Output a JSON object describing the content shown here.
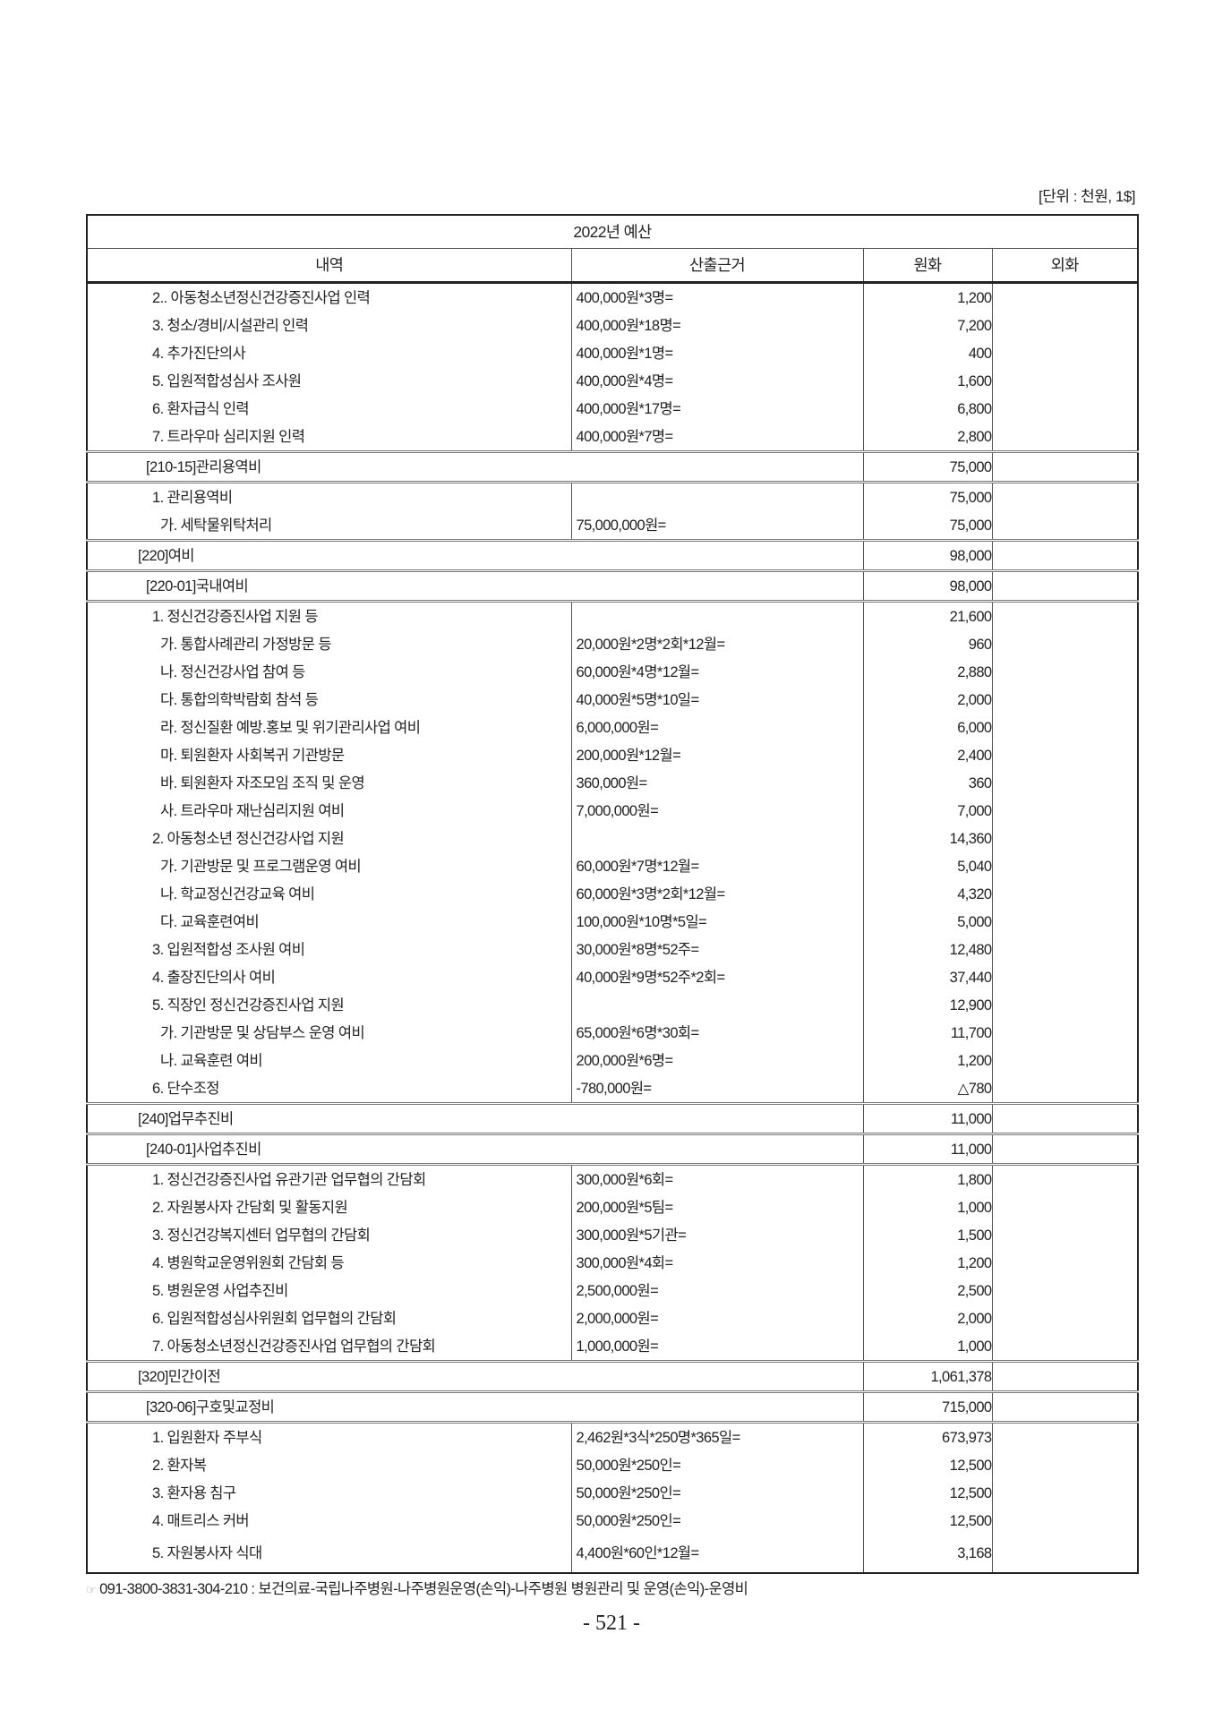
{
  "unit_note": "[단위 : 천원, 1$]",
  "table": {
    "title": "2022년 예산",
    "headers": [
      "내역",
      "산출근거",
      "원화",
      "외화"
    ],
    "rows": [
      {
        "type": "item",
        "level": 2,
        "label": "2.. 아동청소년정신건강증진사업 인력",
        "basis": "400,000원*3명=",
        "krw": "1,200"
      },
      {
        "type": "item",
        "level": 2,
        "label": "3. 청소/경비/시설관리 인력",
        "basis": "400,000원*18명=",
        "krw": "7,200"
      },
      {
        "type": "item",
        "level": 2,
        "label": "4. 추가진단의사",
        "basis": "400,000원*1명=",
        "krw": "400"
      },
      {
        "type": "item",
        "level": 2,
        "label": "5. 입원적합성심사 조사원",
        "basis": "400,000원*4명=",
        "krw": "1,600"
      },
      {
        "type": "item",
        "level": 2,
        "label": "6. 환자급식 인력",
        "basis": "400,000원*17명=",
        "krw": "6,800"
      },
      {
        "type": "item",
        "level": 2,
        "label": "7. 트라우마 심리지원 인력",
        "basis": "400,000원*7명=",
        "krw": "2,800"
      },
      {
        "type": "section",
        "level": 1,
        "label": "[210-15]관리용역비",
        "krw": "75,000"
      },
      {
        "type": "item",
        "level": 2,
        "label": "1. 관리용역비",
        "basis": "",
        "krw": "75,000"
      },
      {
        "type": "item",
        "level": 3,
        "label": "가. 세탁물위탁처리",
        "basis": "75,000,000원=",
        "krw": "75,000"
      },
      {
        "type": "section",
        "level": 0,
        "label": "[220]여비",
        "krw": "98,000"
      },
      {
        "type": "section",
        "level": 1,
        "label": "[220-01]국내여비",
        "krw": "98,000"
      },
      {
        "type": "item",
        "level": 2,
        "label": "1. 정신건강증진사업 지원 등",
        "basis": "",
        "krw": "21,600"
      },
      {
        "type": "item",
        "level": 3,
        "label": "가. 통합사례관리 가정방문 등",
        "basis": "20,000원*2명*2회*12월=",
        "krw": "960"
      },
      {
        "type": "item",
        "level": 3,
        "label": "나. 정신건강사업 참여 등",
        "basis": "60,000원*4명*12월=",
        "krw": "2,880"
      },
      {
        "type": "item",
        "level": 3,
        "label": "다. 통합의학박람회 참석 등",
        "basis": "40,000원*5명*10일=",
        "krw": "2,000"
      },
      {
        "type": "item",
        "level": 3,
        "label": "라. 정신질환 예방.홍보 및 위기관리사업 여비",
        "basis": "6,000,000원=",
        "krw": "6,000"
      },
      {
        "type": "item",
        "level": 3,
        "label": "마. 퇴원환자 사회복귀 기관방문",
        "basis": "200,000원*12월=",
        "krw": "2,400"
      },
      {
        "type": "item",
        "level": 3,
        "label": "바. 퇴원환자 자조모임 조직 및 운영",
        "basis": "360,000원=",
        "krw": "360"
      },
      {
        "type": "item",
        "level": 3,
        "label": "사. 트라우마 재난심리지원 여비",
        "basis": "7,000,000원=",
        "krw": "7,000"
      },
      {
        "type": "item",
        "level": 2,
        "label": "2. 아동청소년 정신건강사업 지원",
        "basis": "",
        "krw": "14,360"
      },
      {
        "type": "item",
        "level": 3,
        "label": "가. 기관방문 및 프로그램운영 여비",
        "basis": "60,000원*7명*12월=",
        "krw": "5,040"
      },
      {
        "type": "item",
        "level": 3,
        "label": "나. 학교정신건강교육 여비",
        "basis": "60,000원*3명*2회*12월=",
        "krw": "4,320"
      },
      {
        "type": "item",
        "level": 3,
        "label": "다. 교육훈련여비",
        "basis": "100,000원*10명*5일=",
        "krw": "5,000"
      },
      {
        "type": "item",
        "level": 2,
        "label": "3. 입원적합성 조사원 여비",
        "basis": "30,000원*8명*52주=",
        "krw": "12,480"
      },
      {
        "type": "item",
        "level": 2,
        "label": "4. 출장진단의사 여비",
        "basis": "40,000원*9명*52주*2회=",
        "krw": "37,440"
      },
      {
        "type": "item",
        "level": 2,
        "label": "5. 직장인 정신건강증진사업 지원",
        "basis": "",
        "krw": "12,900"
      },
      {
        "type": "item",
        "level": 3,
        "label": "가. 기관방문 및 상담부스 운영 여비",
        "basis": "65,000원*6명*30회=",
        "krw": "11,700"
      },
      {
        "type": "item",
        "level": 3,
        "label": "나. 교육훈련 여비",
        "basis": "200,000원*6명=",
        "krw": "1,200"
      },
      {
        "type": "item",
        "level": 2,
        "label": "6. 단수조정",
        "basis": "-780,000원=",
        "krw": "△780"
      },
      {
        "type": "section",
        "level": 0,
        "label": "[240]업무추진비",
        "krw": "11,000"
      },
      {
        "type": "section",
        "level": 1,
        "label": "[240-01]사업추진비",
        "krw": "11,000"
      },
      {
        "type": "item",
        "level": 2,
        "label": "1. 정신건강증진사업 유관기관 업무협의 간담회",
        "basis": "300,000원*6회=",
        "krw": "1,800"
      },
      {
        "type": "item",
        "level": 2,
        "label": "2. 자원봉사자 간담회 및 활동지원",
        "basis": "200,000원*5팀=",
        "krw": "1,000"
      },
      {
        "type": "item",
        "level": 2,
        "label": "3. 정신건강복지센터 업무협의 간담회",
        "basis": "300,000원*5기관=",
        "krw": "1,500"
      },
      {
        "type": "item",
        "level": 2,
        "label": "4. 병원학교운영위원회 간담회 등",
        "basis": "300,000원*4회=",
        "krw": "1,200"
      },
      {
        "type": "item",
        "level": 2,
        "label": "5. 병원운영 사업추진비",
        "basis": "2,500,000원=",
        "krw": "2,500"
      },
      {
        "type": "item",
        "level": 2,
        "label": "6. 입원적합성심사위원회 업무협의 간담회",
        "basis": "2,000,000원=",
        "krw": "2,000"
      },
      {
        "type": "item",
        "level": 2,
        "label": "7. 아동청소년정신건강증진사업 업무협의 간담회",
        "basis": "1,000,000원=",
        "krw": "1,000"
      },
      {
        "type": "section",
        "level": 0,
        "label": "[320]민간이전",
        "krw": "1,061,378"
      },
      {
        "type": "section",
        "level": 1,
        "label": "[320-06]구호및교정비",
        "krw": "715,000"
      },
      {
        "type": "item",
        "level": 2,
        "label": "1. 입원환자 주부식",
        "basis": "2,462원*3식*250명*365일=",
        "krw": "673,973"
      },
      {
        "type": "item",
        "level": 2,
        "label": "2. 환자복",
        "basis": "50,000원*250인=",
        "krw": "12,500"
      },
      {
        "type": "item",
        "level": 2,
        "label": "3. 환자용 침구",
        "basis": "50,000원*250인=",
        "krw": "12,500"
      },
      {
        "type": "item",
        "level": 2,
        "label": "4. 매트리스 커버",
        "basis": "50,000원*250인=",
        "krw": "12,500"
      },
      {
        "type": "item",
        "level": 2,
        "label": "5. 자원봉사자 식대",
        "basis": "4,400원*60인*12월=",
        "krw": "3,168"
      }
    ]
  },
  "footer": {
    "icon": "pointing-hand-icon",
    "text": "091-3800-3831-304-210 : 보건의료-국립나주병원-나주병원운영(손익)-나주병원 병원관리 및 운영(손익)-운영비"
  },
  "page_number": "- 521 -"
}
